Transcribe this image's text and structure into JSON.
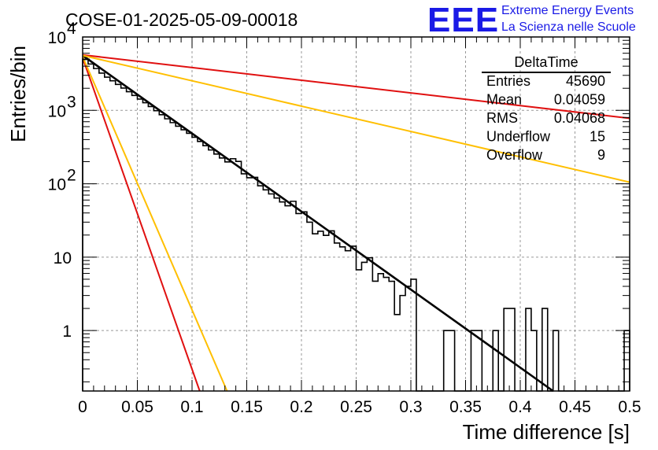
{
  "chart_data": {
    "type": "histogram",
    "title": "COSE-01-2025-05-09-00018",
    "xlabel": "Time difference [s]",
    "ylabel": "Entries/bin",
    "xlim": [
      0,
      0.5
    ],
    "ylim": [
      0.15,
      10000
    ],
    "yscale": "log",
    "grid": true,
    "x_ticks": [
      "0",
      "0.05",
      "0.1",
      "0.15",
      "0.2",
      "0.25",
      "0.3",
      "0.35",
      "0.4",
      "0.45",
      "0.5"
    ],
    "x_tick_values": [
      0,
      0.05,
      0.1,
      0.15,
      0.2,
      0.25,
      0.3,
      0.35,
      0.4,
      0.45,
      0.5
    ],
    "y_ticks": [
      {
        "value": 1,
        "base": "1",
        "exp": ""
      },
      {
        "value": 10,
        "base": "10",
        "exp": ""
      },
      {
        "value": 100,
        "base": "10",
        "exp": "2"
      },
      {
        "value": 1000,
        "base": "10",
        "exp": "3"
      },
      {
        "value": 10000,
        "base": "10",
        "exp": "4"
      }
    ],
    "bin_width": 0.005,
    "histogram_points": [
      [
        0.0,
        5300
      ],
      [
        0.02,
        3000
      ],
      [
        0.04,
        1900
      ],
      [
        0.06,
        1200
      ],
      [
        0.08,
        720
      ],
      [
        0.1,
        460
      ],
      [
        0.12,
        270
      ],
      [
        0.14,
        165
      ],
      [
        0.16,
        100
      ],
      [
        0.18,
        60
      ],
      [
        0.2,
        37
      ],
      [
        0.22,
        21
      ],
      [
        0.24,
        13
      ],
      [
        0.26,
        8
      ],
      [
        0.28,
        5
      ],
      [
        0.3,
        3
      ],
      [
        0.32,
        1.7
      ],
      [
        0.34,
        1
      ],
      [
        0.36,
        0.6
      ],
      [
        0.4,
        0.3
      ]
    ],
    "hist_deviations": {
      "0.135": 1.25,
      "0.140": 1.3,
      "0.155": 1.15,
      "0.190": 1.3,
      "0.200": 1.2,
      "0.210": 0.8,
      "0.225": 1.3,
      "0.245": 1.3,
      "0.250": 0.7,
      "0.260": 1.3,
      "0.265": 0.7,
      "0.285": 0.4,
      "0.290": 1.3,
      "0.295": 2.1,
      "0.300": 2.6,
      "0.305": 2.8,
      "0.315": 0.0,
      "0.320": 0.0,
      "0.325": 0.0,
      "0.330": 0.0,
      "0.335": 0.0
    },
    "isolated_bins": [
      {
        "x": 0.29,
        "y": 3
      },
      {
        "x": 0.295,
        "y": 4
      },
      {
        "x": 0.3,
        "y": 5
      },
      {
        "x": 0.33,
        "y": 1
      },
      {
        "x": 0.335,
        "y": 1
      },
      {
        "x": 0.355,
        "y": 1
      },
      {
        "x": 0.36,
        "y": 1
      },
      {
        "x": 0.375,
        "y": 1
      },
      {
        "x": 0.385,
        "y": 2
      },
      {
        "x": 0.39,
        "y": 2
      },
      {
        "x": 0.405,
        "y": 2
      },
      {
        "x": 0.41,
        "y": 1
      },
      {
        "x": 0.42,
        "y": 2
      },
      {
        "x": 0.43,
        "y": 1
      },
      {
        "x": 0.495,
        "y": 1
      }
    ],
    "series": [
      {
        "style": "fit",
        "color": "#000000",
        "x0": 0.0,
        "y0": 5600,
        "x1": 0.43,
        "y1": 0.15
      },
      {
        "style": "band",
        "color": "#e01010",
        "x0": 0.0,
        "y0": 5700,
        "x1": 0.5,
        "y1": 780
      },
      {
        "style": "band",
        "color": "#ffbf00",
        "x0": 0.0,
        "y0": 5600,
        "x1": 0.5,
        "y1": 105
      },
      {
        "style": "band",
        "color": "#e01010",
        "x0": 0.0,
        "y0": 5200,
        "x1": 0.107,
        "y1": 0.15
      },
      {
        "style": "band",
        "color": "#ffbf00",
        "x0": 0.0,
        "y0": 5400,
        "x1": 0.132,
        "y1": 0.15
      }
    ]
  },
  "stats": {
    "title": "DeltaTime",
    "rows": [
      {
        "label": "Entries",
        "value": "45690"
      },
      {
        "label": "Mean",
        "value": "0.04059"
      },
      {
        "label": "RMS",
        "value": "0.04068"
      },
      {
        "label": "Underflow",
        "value": "15"
      },
      {
        "label": "Overflow",
        "value": "9"
      }
    ]
  },
  "logo": {
    "mark": "EEE",
    "line1": "Extreme Energy Events",
    "line2": "La Scienza nelle Scuole"
  }
}
